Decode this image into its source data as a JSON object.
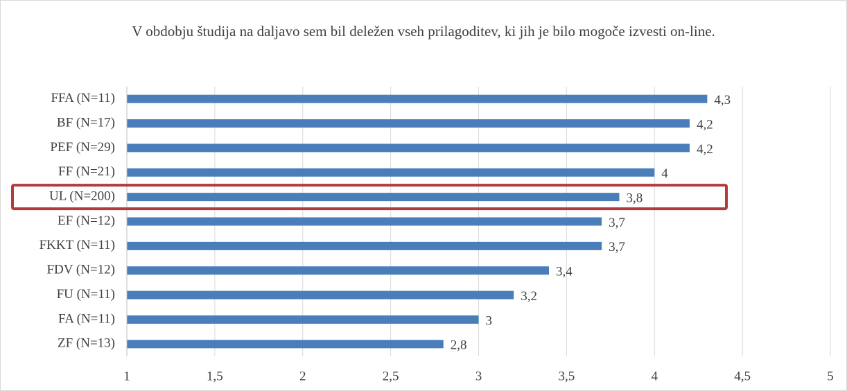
{
  "chart_data": {
    "type": "hbar",
    "title": "V obdobju študija na daljavo sem bil deležen vseh prilagoditev, ki jih je bilo mogoče izvesti on-line.",
    "categories": [
      "FFA (N=11)",
      "BF (N=17)",
      "PEF (N=29)",
      "FF (N=21)",
      "UL (N=200)",
      "EF (N=12)",
      "FKKT (N=11)",
      "FDV (N=12)",
      "FU (N=11)",
      "FA (N=11)",
      "ZF (N=13)"
    ],
    "values": [
      4.3,
      4.2,
      4.2,
      4,
      3.8,
      3.7,
      3.7,
      3.4,
      3.2,
      3,
      2.8
    ],
    "value_labels": [
      "4,3",
      "4,2",
      "4,2",
      "4",
      "3,8",
      "3,7",
      "3,7",
      "3,4",
      "3,2",
      "3",
      "2,8"
    ],
    "color": "#4a7ebb",
    "xlim": [
      1,
      5
    ],
    "xticks": [
      1,
      {
        "value": 1.5,
        "label": "1,5"
      },
      2,
      {
        "value": 2.5,
        "label": "2,5"
      },
      3,
      {
        "value": 3.5,
        "label": "3,5"
      },
      4,
      {
        "value": 4.5,
        "label": "4,5"
      },
      5
    ],
    "grid": true
  }
}
